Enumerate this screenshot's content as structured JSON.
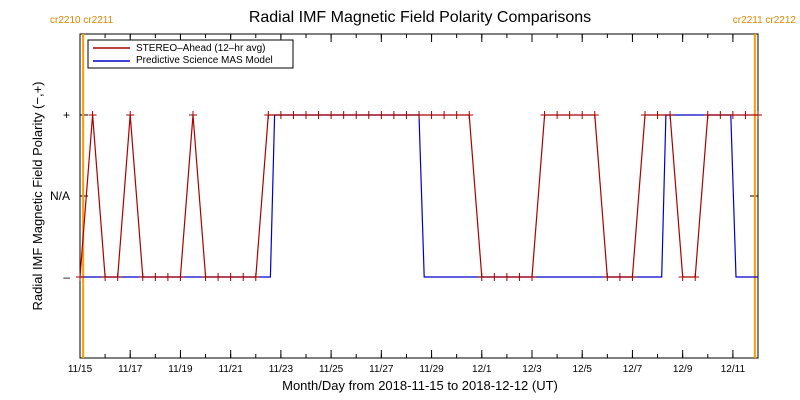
{
  "chart_data": {
    "type": "line",
    "title": "Radial IMF Magnetic Field Polarity Comparisons",
    "xlabel": "Month/Day from 2018-11-15 to 2018-12-12 (UT)",
    "ylabel": "Radial IMF Magnetic Field Polarity (−,+)",
    "x_range": [
      "2018-11-15T00:00",
      "2018-12-12T00:00"
    ],
    "x_ticks": [
      "11/15",
      "11/17",
      "11/19",
      "11/21",
      "11/23",
      "11/25",
      "11/27",
      "11/29",
      "12/1",
      "12/3",
      "12/5",
      "12/7",
      "12/9",
      "12/11"
    ],
    "y_ticks": [
      {
        "label": "+",
        "value": 1
      },
      {
        "label": "N/A",
        "value": 0
      },
      {
        "label": "–",
        "value": -1
      }
    ],
    "ylim": [
      -2,
      2
    ],
    "legend_position": "top-left",
    "carrington_markers": [
      {
        "label": "cr2210 cr2211",
        "date": "2018-11-15T03:00",
        "side": "left"
      },
      {
        "label": "cr2211 cr2212",
        "date": "2018-12-11T21:00",
        "side": "right"
      }
    ],
    "series": [
      {
        "name": "STEREO–Ahead (12–hr avg)",
        "color": "#aa0000",
        "markers": "plus",
        "points": [
          [
            "2018-11-15T00:00",
            -1
          ],
          [
            "2018-11-15T12:00",
            1
          ],
          [
            "2018-11-16T00:00",
            -1
          ],
          [
            "2018-11-16T12:00",
            -1
          ],
          [
            "2018-11-17T00:00",
            1
          ],
          [
            "2018-11-17T12:00",
            -1
          ],
          [
            "2018-11-18T00:00",
            -1
          ],
          [
            "2018-11-18T12:00",
            -1
          ],
          [
            "2018-11-19T00:00",
            -1
          ],
          [
            "2018-11-19T12:00",
            1
          ],
          [
            "2018-11-20T00:00",
            -1
          ],
          [
            "2018-11-20T12:00",
            -1
          ],
          [
            "2018-11-21T00:00",
            -1
          ],
          [
            "2018-11-21T12:00",
            -1
          ],
          [
            "2018-11-22T00:00",
            -1
          ],
          [
            "2018-11-22T12:00",
            1
          ],
          [
            "2018-11-23T00:00",
            1
          ],
          [
            "2018-11-23T12:00",
            1
          ],
          [
            "2018-11-24T00:00",
            1
          ],
          [
            "2018-11-24T12:00",
            1
          ],
          [
            "2018-11-25T00:00",
            1
          ],
          [
            "2018-11-25T12:00",
            1
          ],
          [
            "2018-11-26T00:00",
            1
          ],
          [
            "2018-11-26T12:00",
            1
          ],
          [
            "2018-11-27T00:00",
            1
          ],
          [
            "2018-11-27T12:00",
            1
          ],
          [
            "2018-11-28T00:00",
            1
          ],
          [
            "2018-11-28T12:00",
            1
          ],
          [
            "2018-11-29T00:00",
            1
          ],
          [
            "2018-11-29T12:00",
            1
          ],
          [
            "2018-11-30T00:00",
            1
          ],
          [
            "2018-11-30T12:00",
            1
          ],
          [
            "2018-12-01T00:00",
            -1
          ],
          [
            "2018-12-01T12:00",
            -1
          ],
          [
            "2018-12-02T00:00",
            -1
          ],
          [
            "2018-12-02T12:00",
            -1
          ],
          [
            "2018-12-03T00:00",
            -1
          ],
          [
            "2018-12-03T12:00",
            1
          ],
          [
            "2018-12-04T00:00",
            1
          ],
          [
            "2018-12-04T12:00",
            1
          ],
          [
            "2018-12-05T00:00",
            1
          ],
          [
            "2018-12-05T12:00",
            1
          ],
          [
            "2018-12-06T00:00",
            -1
          ],
          [
            "2018-12-06T12:00",
            -1
          ],
          [
            "2018-12-07T00:00",
            -1
          ],
          [
            "2018-12-07T12:00",
            1
          ],
          [
            "2018-12-08T00:00",
            1
          ],
          [
            "2018-12-08T12:00",
            1
          ],
          [
            "2018-12-09T00:00",
            -1
          ],
          [
            "2018-12-09T12:00",
            -1
          ],
          [
            "2018-12-10T00:00",
            1
          ],
          [
            "2018-12-10T12:00",
            1
          ],
          [
            "2018-12-11T00:00",
            1
          ],
          [
            "2018-12-11T12:00",
            1
          ],
          [
            "2018-12-12T00:00",
            1
          ]
        ]
      },
      {
        "name": "Predictive Science MAS Model",
        "color": "#0000cc",
        "markers": "none",
        "points": [
          [
            "2018-11-15T00:00",
            -1
          ],
          [
            "2018-11-22T14:00",
            -1
          ],
          [
            "2018-11-22T18:00",
            1
          ],
          [
            "2018-11-28T12:00",
            1
          ],
          [
            "2018-11-28T17:00",
            -1
          ],
          [
            "2018-12-08T04:00",
            -1
          ],
          [
            "2018-12-08T08:00",
            1
          ],
          [
            "2018-12-10T22:00",
            1
          ],
          [
            "2018-12-11T03:00",
            -1
          ],
          [
            "2018-12-12T00:00",
            -1
          ]
        ]
      }
    ],
    "colors": {
      "stereo": "#aa0000",
      "model": "#0000cc",
      "carrington": "#ff9900",
      "carrington_label": "#dd8800"
    }
  }
}
